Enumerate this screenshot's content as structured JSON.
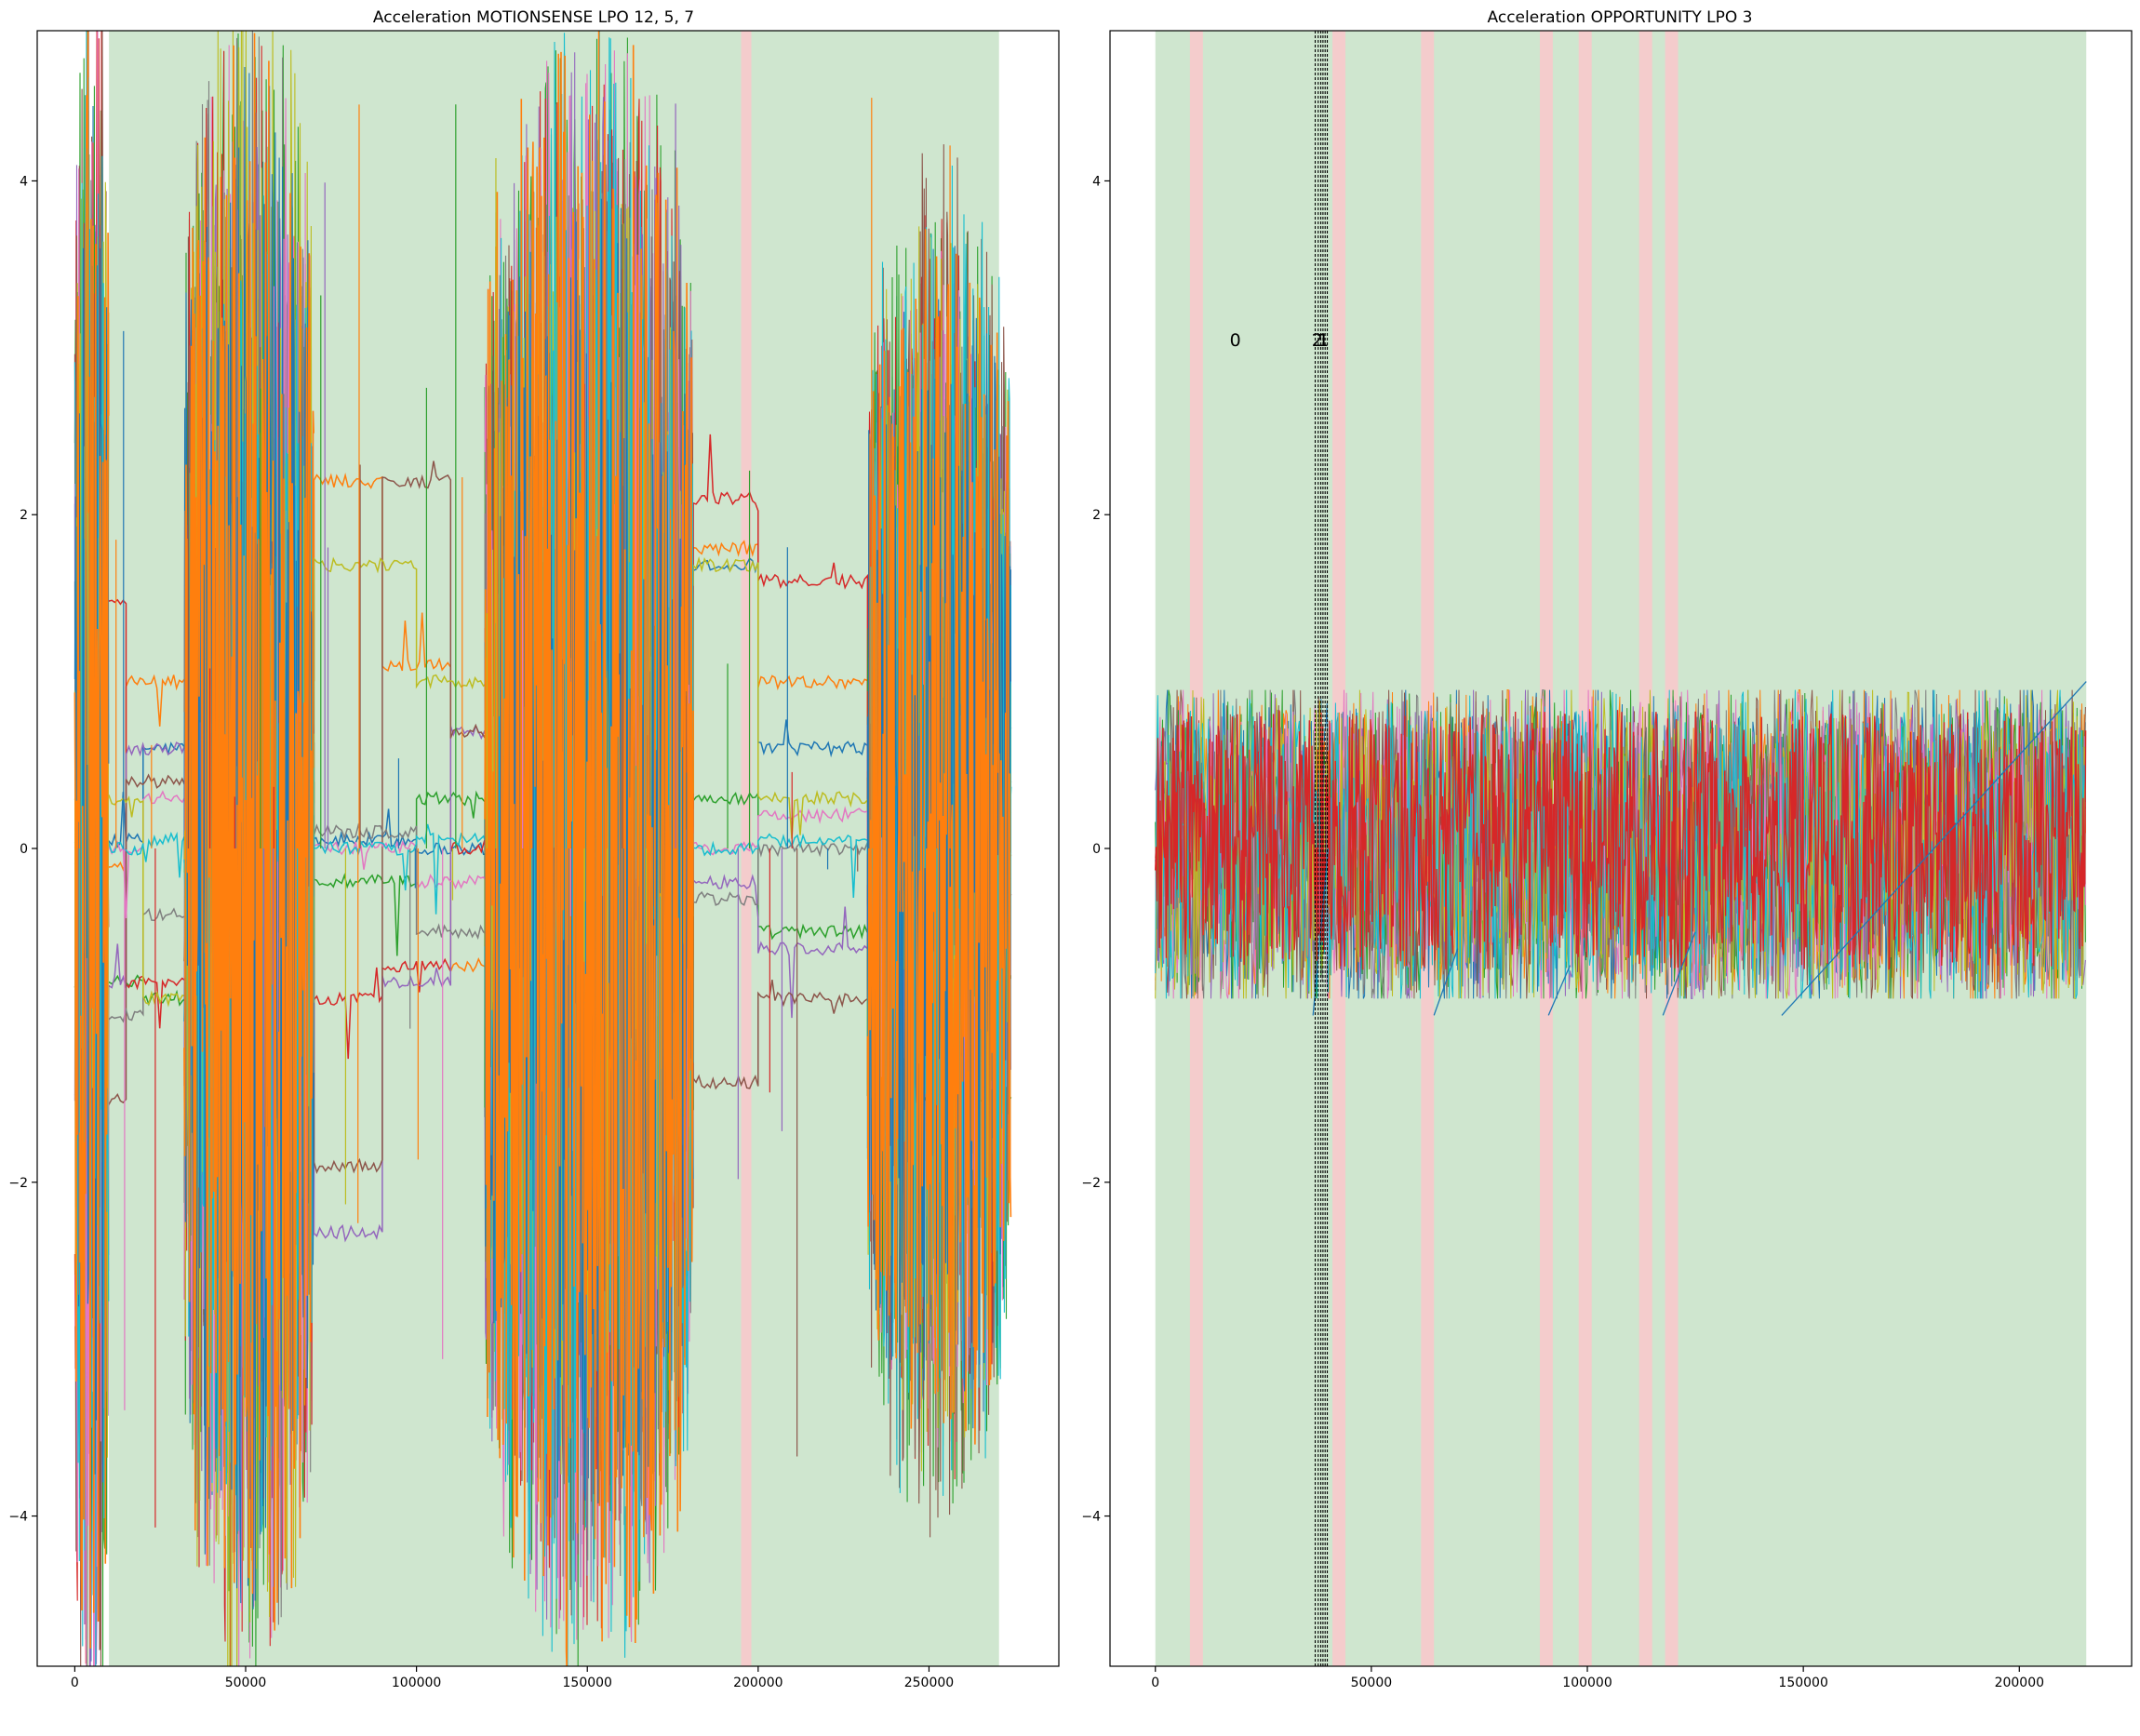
{
  "chart_data": [
    {
      "type": "line",
      "title": "Acceleration  MOTIONSENSE  LPO 12, 5, 7",
      "xlim": [
        -11000,
        288000
      ],
      "ylim": [
        -4.9,
        4.9
      ],
      "xticks": [
        0,
        50000,
        100000,
        150000,
        200000,
        250000
      ],
      "xtick_labels": [
        "0",
        "50000",
        "100000",
        "150000",
        "200000",
        "250000"
      ],
      "yticks": [
        -4,
        -2,
        0,
        2,
        4
      ],
      "ytick_labels": [
        "−4",
        "−2",
        "0",
        "2",
        "4"
      ],
      "grid": false,
      "background_spans": [
        {
          "x0": 10000,
          "x1": 195000,
          "color": "#cfe6cf"
        },
        {
          "x0": 195000,
          "x1": 198000,
          "color": "#f4cccc"
        },
        {
          "x0": 198000,
          "x1": 270500,
          "color": "#cfe6cf"
        }
      ],
      "bursts": [
        {
          "x0": 0,
          "x1": 10000,
          "amp": 5.2
        },
        {
          "x0": 32000,
          "x1": 70000,
          "amp": 5.0
        },
        {
          "x0": 120000,
          "x1": 181000,
          "amp": 5.0
        },
        {
          "x0": 232000,
          "x1": 274000,
          "amp": 3.8
        }
      ],
      "step_series": [
        {
          "name": "blue",
          "color": "#1f77b4",
          "x": [
            0,
            20000,
            60000,
            100000,
            140000,
            181000,
            200000,
            232000
          ],
          "y": [
            0.05,
            0.6,
            0.05,
            0.0,
            0.1,
            1.7,
            0.6,
            0.1
          ]
        },
        {
          "name": "orange",
          "color": "#ff7f0e",
          "x": [
            0,
            15000,
            70000,
            90000,
            110000,
            181000,
            200000,
            232000
          ],
          "y": [
            -0.1,
            1.0,
            2.2,
            1.1,
            -0.7,
            1.8,
            1.0,
            -0.05
          ]
        },
        {
          "name": "green",
          "color": "#2ca02c",
          "x": [
            0,
            20000,
            70000,
            100000,
            120000,
            181000,
            200000,
            232000
          ],
          "y": [
            -0.8,
            -0.9,
            -0.2,
            0.3,
            -1.6,
            0.3,
            -0.5,
            -1.5
          ]
        },
        {
          "name": "red",
          "color": "#d62728",
          "x": [
            0,
            15000,
            70000,
            90000,
            110000,
            181000,
            200000,
            232000
          ],
          "y": [
            1.5,
            -0.8,
            -0.9,
            -0.7,
            0.0,
            2.1,
            1.6,
            -0.3
          ]
        },
        {
          "name": "purple",
          "color": "#9467bd",
          "x": [
            0,
            15000,
            70000,
            90000,
            110000,
            181000,
            200000,
            232000
          ],
          "y": [
            -0.8,
            0.6,
            -2.3,
            -0.8,
            0.7,
            -0.2,
            -0.6,
            0.7
          ]
        },
        {
          "name": "brown",
          "color": "#8c564b",
          "x": [
            0,
            15000,
            70000,
            90000,
            110000,
            181000,
            200000,
            232000
          ],
          "y": [
            -1.5,
            0.4,
            -1.9,
            2.2,
            0.7,
            -1.4,
            -0.9,
            0.4
          ]
        },
        {
          "name": "pink",
          "color": "#e377c2",
          "x": [
            0,
            20000,
            70000,
            100000,
            140000,
            181000,
            200000,
            232000
          ],
          "y": [
            0.0,
            0.3,
            0.0,
            -0.2,
            0.1,
            0.0,
            0.2,
            0.0
          ]
        },
        {
          "name": "gray",
          "color": "#7f7f7f",
          "x": [
            0,
            20000,
            70000,
            100000,
            140000,
            181000,
            200000,
            232000
          ],
          "y": [
            -1.0,
            -0.4,
            0.1,
            -0.5,
            0.2,
            -0.3,
            0.0,
            -0.2
          ]
        },
        {
          "name": "olive",
          "color": "#bcbd22",
          "x": [
            0,
            20000,
            70000,
            100000,
            140000,
            181000,
            200000,
            232000
          ],
          "y": [
            0.3,
            -0.9,
            1.7,
            1.0,
            0.3,
            1.7,
            0.3,
            0.2
          ]
        },
        {
          "name": "cyan",
          "color": "#17becf",
          "x": [
            0,
            20000,
            70000,
            100000,
            140000,
            181000,
            200000,
            232000
          ],
          "y": [
            0.0,
            0.05,
            0.0,
            0.05,
            0.1,
            0.0,
            0.05,
            0.0
          ]
        }
      ],
      "palette": [
        "#1f77b4",
        "#ff7f0e",
        "#2ca02c",
        "#d62728",
        "#9467bd",
        "#8c564b",
        "#e377c2",
        "#7f7f7f",
        "#bcbd22",
        "#17becf"
      ],
      "dominant_color": "#ff7f0e"
    },
    {
      "type": "line",
      "title": "Acceleration  OPPORTUNITY  LPO 3",
      "xlim": [
        -10500,
        226000
      ],
      "ylim": [
        -4.9,
        4.9
      ],
      "xticks": [
        0,
        50000,
        100000,
        150000,
        200000
      ],
      "xtick_labels": [
        "0",
        "50000",
        "100000",
        "150000",
        "200000"
      ],
      "yticks": [
        -4,
        -2,
        0,
        2,
        4
      ],
      "ytick_labels": [
        "−4",
        "−2",
        "0",
        "2",
        "4"
      ],
      "grid": false,
      "background_spans": [
        {
          "x0": 0,
          "x1": 215500,
          "color": "#cfe6cf"
        },
        {
          "x0": 8000,
          "x1": 11000,
          "color": "#f4cccc"
        },
        {
          "x0": 41000,
          "x1": 44000,
          "color": "#f4cccc"
        },
        {
          "x0": 61500,
          "x1": 64500,
          "color": "#f4cccc"
        },
        {
          "x0": 89000,
          "x1": 92000,
          "color": "#f4cccc"
        },
        {
          "x0": 98000,
          "x1": 101000,
          "color": "#f4cccc"
        },
        {
          "x0": 112000,
          "x1": 115000,
          "color": "#f4cccc"
        },
        {
          "x0": 118000,
          "x1": 121000,
          "color": "#f4cccc"
        }
      ],
      "noise_band": {
        "x0": 0,
        "x1": 215500,
        "ymin": -0.9,
        "ymax": 0.95
      },
      "vlines": [
        37000,
        37700,
        38300,
        38800,
        39300,
        39800
      ],
      "ramps": [
        {
          "x0": 36500,
          "y0": -1.0,
          "x1": 40000,
          "y1": 0.0
        },
        {
          "x0": 64500,
          "y0": -1.0,
          "x1": 70000,
          "y1": -0.6
        },
        {
          "x0": 91000,
          "y0": -1.0,
          "x1": 96000,
          "y1": -0.7
        },
        {
          "x0": 117500,
          "y0": -1.0,
          "x1": 125000,
          "y1": -0.5
        },
        {
          "x0": 145000,
          "y0": -1.0,
          "x1": 215500,
          "y1": 1.0
        }
      ],
      "annotations": [
        {
          "text": "0",
          "x": 18500,
          "y": 3.05
        },
        {
          "text": "2",
          "x": 37500,
          "y": 3.05
        },
        {
          "text": "1",
          "x": 38900,
          "y": 3.05
        }
      ],
      "palette": [
        "#1f77b4",
        "#ff7f0e",
        "#2ca02c",
        "#9467bd",
        "#8c564b",
        "#e377c2",
        "#7f7f7f",
        "#bcbd22",
        "#17becf",
        "#d62728"
      ],
      "dominant_color": "#d62728"
    }
  ]
}
